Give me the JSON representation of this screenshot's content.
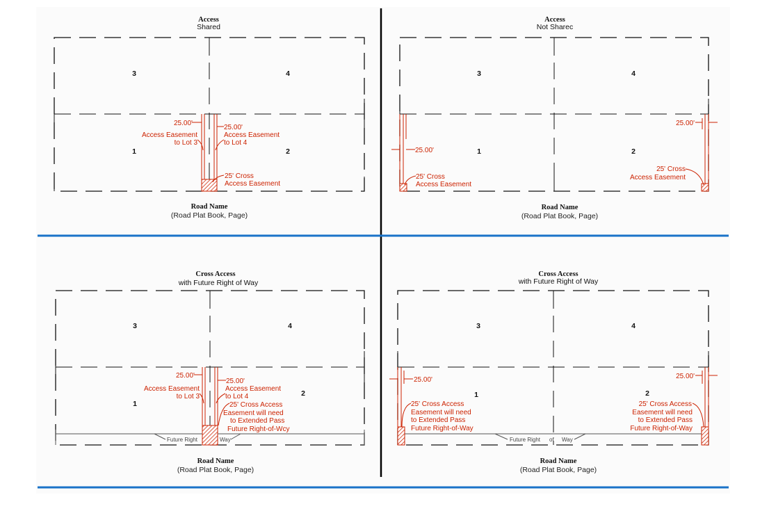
{
  "colors": {
    "easement_red": "#cc2200",
    "divider_blue": "#1a73c8",
    "line_black": "#111111"
  },
  "road_caption": {
    "name": "Road Name",
    "ref": "(Road Plat Book, Page)"
  },
  "panel_tl": {
    "title": "Access",
    "subtitle": "Shared",
    "lots": [
      "3",
      "4",
      "1",
      "2"
    ],
    "dim_left": "25.00'",
    "dim_right": "25.00'",
    "easement_lot3": [
      "Access Easement",
      "to Lot 3"
    ],
    "easement_lot4": [
      "Access Easement",
      "to Lot 4"
    ],
    "cross_easement": [
      "25' Cross",
      "Access Easement"
    ]
  },
  "panel_tr": {
    "title": "Access",
    "subtitle": "Not Sharec",
    "lots": [
      "3",
      "4",
      "1",
      "2"
    ],
    "dim_left": "25.00'",
    "dim_right": "25.00'",
    "cross_left": [
      "25' Cross",
      "Access Easement"
    ],
    "cross_right": [
      "25' Cross",
      "Access Easement"
    ]
  },
  "panel_bl": {
    "title": "Cross Access",
    "subtitle": "with Future Right of Way",
    "lots": [
      "3",
      "4",
      "1",
      "2"
    ],
    "dim_left": "25.00'",
    "dim_right": "25.00'",
    "easement_lot3": [
      "Access Easement",
      "to Lot 3"
    ],
    "easement_lot4": [
      "Access Easement",
      "to Lot 4"
    ],
    "cross_easement": [
      "25' Cross Access",
      "Easement will need",
      "to Extended Pass",
      "Future Right-of-Wcy"
    ],
    "future_row": [
      "Future Right",
      "Way"
    ]
  },
  "panel_br": {
    "title": "Cross Access",
    "subtitle": "with Future Right of Way",
    "lots": [
      "3",
      "4",
      "1",
      "2"
    ],
    "dim_left": "25.00'",
    "dim_right": "25.00'",
    "cross_left": [
      "25' Cross Access",
      "Easement will need",
      "to Extended Pass",
      "Future Right-of-Way"
    ],
    "cross_right": [
      "25' Cross Access",
      "Easement will need",
      "to Extended Pass",
      "Future Right-of-Way"
    ],
    "future_row": [
      "Future Right",
      "of",
      "Way"
    ]
  }
}
